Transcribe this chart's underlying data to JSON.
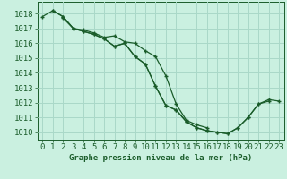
{
  "bg_color": "#caf0e0",
  "grid_color": "#aad8c8",
  "line_color": "#1a5c2a",
  "marker_color": "#1a5c2a",
  "xlabel": "Graphe pression niveau de la mer (hPa)",
  "xlabel_color": "#1a5c2a",
  "ylim": [
    1009.5,
    1018.8
  ],
  "xlim": [
    -0.5,
    23.5
  ],
  "yticks": [
    1010,
    1011,
    1012,
    1013,
    1014,
    1015,
    1016,
    1017,
    1018
  ],
  "xticks": [
    0,
    1,
    2,
    3,
    4,
    5,
    6,
    7,
    8,
    9,
    10,
    11,
    12,
    13,
    14,
    15,
    16,
    17,
    18,
    19,
    20,
    21,
    22,
    23
  ],
  "series": [
    [
      1017.8,
      1018.2,
      1017.8,
      1017.0,
      1016.8,
      1016.6,
      1016.3,
      1015.8,
      1016.0,
      1015.1,
      1014.6,
      1013.1,
      1011.8,
      1011.5,
      1010.7,
      1010.3,
      1010.1,
      1010.0,
      1009.9,
      1010.3,
      1011.0,
      1011.9,
      1012.1,
      null
    ],
    [
      null,
      1018.2,
      1017.8,
      1017.0,
      1016.9,
      1016.7,
      1016.4,
      1016.5,
      1016.1,
      1016.0,
      1015.5,
      1015.1,
      1013.8,
      1011.9,
      1010.8,
      1010.5,
      1010.3,
      null,
      null,
      null,
      null,
      null,
      null,
      null
    ],
    [
      null,
      null,
      1017.7,
      1017.0,
      1016.8,
      1016.6,
      1016.3,
      1015.8,
      1016.0,
      1015.1,
      1014.6,
      1013.1,
      1011.8,
      1011.5,
      1010.7,
      1010.3,
      1010.1,
      1010.0,
      1009.9,
      1010.3,
      1011.0,
      1011.9,
      1012.2,
      1012.1
    ]
  ]
}
